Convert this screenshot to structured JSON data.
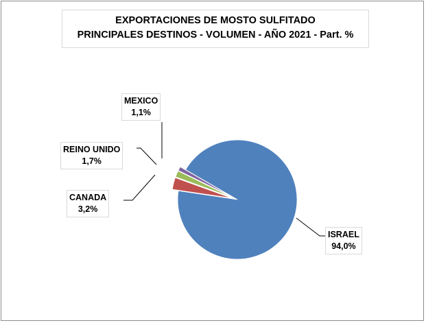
{
  "chart_data": {
    "type": "pie",
    "title": "EXPORTACIONES DE MOSTO SULFITADO",
    "subtitle": "PRINCIPALES DESTINOS - VOLUMEN - AÑO 2021 - Part. %",
    "slices": [
      {
        "label": "ISRAEL",
        "value": 94.0,
        "value_label": "94,0%",
        "color": "#4f81bd"
      },
      {
        "label": "CANADA",
        "value": 3.2,
        "value_label": "3,2%",
        "color": "#c0504d"
      },
      {
        "label": "REINO UNIDO",
        "value": 1.7,
        "value_label": "1,7%",
        "color": "#9bbb59"
      },
      {
        "label": "MEXICO",
        "value": 1.1,
        "value_label": "1,1%",
        "color": "#8064a2"
      }
    ],
    "legend": "none"
  }
}
